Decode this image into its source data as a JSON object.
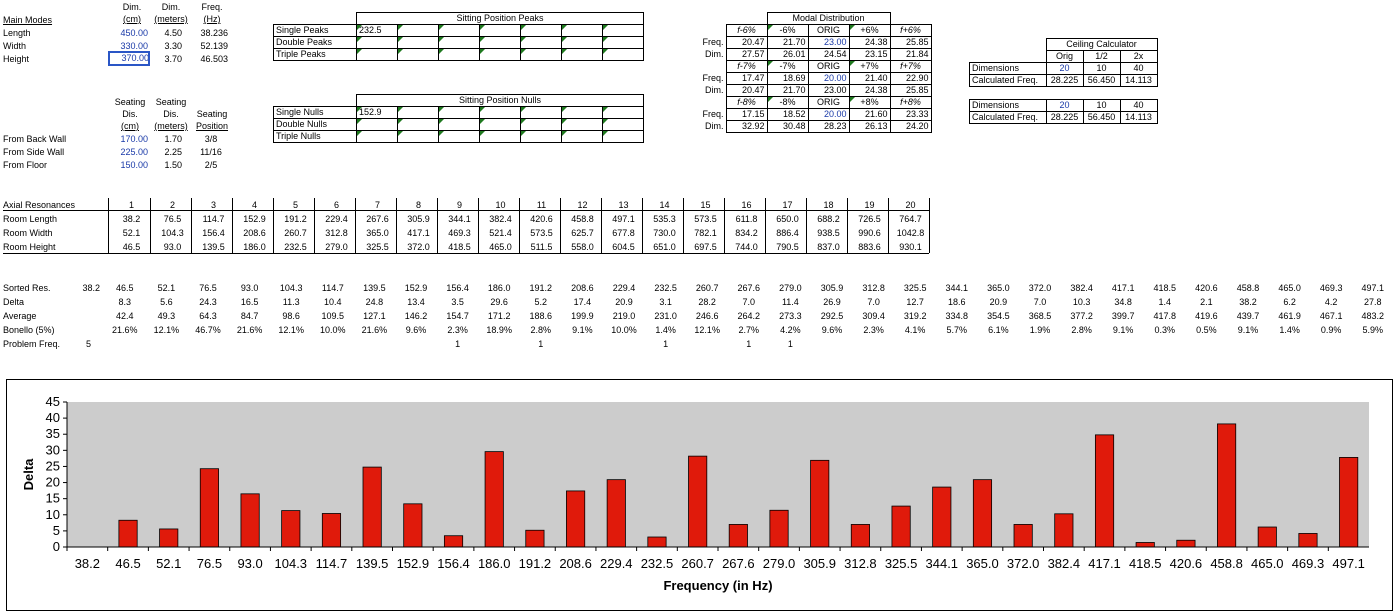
{
  "main_modes": {
    "label": "Main Modes",
    "headers": [
      [
        "Dim.",
        "(cm)"
      ],
      [
        "Dim.",
        "(meters)"
      ],
      [
        "Freq.",
        "(Hz)"
      ]
    ],
    "rows": [
      {
        "name": "Length",
        "cm": "450.00",
        "m": "4.50",
        "hz": "38.236"
      },
      {
        "name": "Width",
        "cm": "330.00",
        "m": "3.30",
        "hz": "52.139"
      },
      {
        "name": "Height",
        "cm": "370.00",
        "m": "3.70",
        "hz": "46.503"
      }
    ]
  },
  "seating": {
    "headers": [
      [
        "Seating",
        "Dis.",
        "(cm)"
      ],
      [
        "Seating",
        "Dis.",
        "(meters)"
      ],
      [
        "Seating",
        "Position"
      ]
    ],
    "rows": [
      {
        "name": "From Back Wall",
        "cm": "170.00",
        "m": "1.70",
        "pos": "3/8"
      },
      {
        "name": "From Side Wall",
        "cm": "225.00",
        "m": "2.25",
        "pos": "11/16"
      },
      {
        "name": "From Floor",
        "cm": "150.00",
        "m": "1.50",
        "pos": "2/5"
      }
    ]
  },
  "peaks": {
    "title": "Sitting Position Peaks",
    "rows": [
      {
        "label": "Single Peaks",
        "first": "232.5"
      },
      {
        "label": "Double Peaks",
        "first": ""
      },
      {
        "label": "Triple Peaks",
        "first": ""
      }
    ]
  },
  "nulls": {
    "title": "Sitting Position Nulls",
    "rows": [
      {
        "label": "Single Nulls",
        "first": "152.9"
      },
      {
        "label": "Double Nulls",
        "first": ""
      },
      {
        "label": "Triple Nulls",
        "first": ""
      }
    ]
  },
  "modal": {
    "title": "Modal Distribution",
    "blocks": [
      {
        "head": [
          "f-6%",
          "-6%",
          "ORIG",
          "+6%",
          "f+6%"
        ],
        "freq": [
          "20.47",
          "21.70",
          "23.00",
          "24.38",
          "25.85"
        ],
        "dim": [
          "27.57",
          "26.01",
          "24.54",
          "23.15",
          "21.84"
        ]
      },
      {
        "head": [
          "f-7%",
          "-7%",
          "ORIG",
          "+7%",
          "f+7%"
        ],
        "freq": [
          "17.47",
          "18.69",
          "20.00",
          "21.40",
          "22.90"
        ],
        "dim": [
          "20.47",
          "21.70",
          "23.00",
          "24.38",
          "25.85"
        ]
      },
      {
        "head": [
          "f-8%",
          "-8%",
          "ORIG",
          "+8%",
          "f+8%"
        ],
        "freq": [
          "17.15",
          "18.52",
          "20.00",
          "21.60",
          "23.33"
        ],
        "dim": [
          "32.92",
          "30.48",
          "28.23",
          "26.13",
          "24.20"
        ]
      }
    ],
    "freq_label": "Freq.",
    "dim_label": "Dim."
  },
  "ceiling": {
    "title": "Ceiling Calculator",
    "cols": [
      "Orig",
      "1/2",
      "2x"
    ],
    "blocks": [
      {
        "dims": [
          "20",
          "10",
          "40"
        ],
        "freq": [
          "28.225",
          "56.450",
          "14.113"
        ]
      },
      {
        "dims": [
          "20",
          "10",
          "40"
        ],
        "freq": [
          "28.225",
          "56.450",
          "14.113"
        ]
      }
    ],
    "dim_label": "Dimensions",
    "freq_label": "Calculated Freq."
  },
  "axial": {
    "label": "Axial Resonances",
    "cols": [
      "1",
      "2",
      "3",
      "4",
      "5",
      "6",
      "7",
      "8",
      "9",
      "10",
      "11",
      "12",
      "13",
      "14",
      "15",
      "16",
      "17",
      "18",
      "19",
      "20"
    ],
    "rows": [
      {
        "name": "Room Length",
        "v": [
          "38.2",
          "76.5",
          "114.7",
          "152.9",
          "191.2",
          "229.4",
          "267.6",
          "305.9",
          "344.1",
          "382.4",
          "420.6",
          "458.8",
          "497.1",
          "535.3",
          "573.5",
          "611.8",
          "650.0",
          "688.2",
          "726.5",
          "764.7"
        ]
      },
      {
        "name": "Room Width",
        "v": [
          "52.1",
          "104.3",
          "156.4",
          "208.6",
          "260.7",
          "312.8",
          "365.0",
          "417.1",
          "469.3",
          "521.4",
          "573.5",
          "625.7",
          "677.8",
          "730.0",
          "782.1",
          "834.2",
          "886.4",
          "938.5",
          "990.6",
          "1042.8"
        ]
      },
      {
        "name": "Room Height",
        "v": [
          "46.5",
          "93.0",
          "139.5",
          "186.0",
          "232.5",
          "279.0",
          "325.5",
          "372.0",
          "418.5",
          "465.0",
          "511.5",
          "558.0",
          "604.5",
          "651.0",
          "697.5",
          "744.0",
          "790.5",
          "837.0",
          "883.6",
          "930.1"
        ]
      }
    ]
  },
  "sorted": {
    "labels": [
      "Sorted Res.",
      "Delta",
      "Average",
      "Bonello (5%)",
      "Problem Freq."
    ],
    "first": "38.2",
    "problem_count": "5",
    "res": [
      "46.5",
      "52.1",
      "76.5",
      "93.0",
      "104.3",
      "114.7",
      "139.5",
      "152.9",
      "156.4",
      "186.0",
      "191.2",
      "208.6",
      "229.4",
      "232.5",
      "260.7",
      "267.6",
      "279.0",
      "305.9",
      "312.8",
      "325.5",
      "344.1",
      "365.0",
      "372.0",
      "382.4",
      "417.1",
      "418.5",
      "420.6",
      "458.8",
      "465.0",
      "469.3",
      "497.1"
    ],
    "delta": [
      "8.3",
      "5.6",
      "24.3",
      "16.5",
      "11.3",
      "10.4",
      "24.8",
      "13.4",
      "3.5",
      "29.6",
      "5.2",
      "17.4",
      "20.9",
      "3.1",
      "28.2",
      "7.0",
      "11.4",
      "26.9",
      "7.0",
      "12.7",
      "18.6",
      "20.9",
      "7.0",
      "10.3",
      "34.8",
      "1.4",
      "2.1",
      "38.2",
      "6.2",
      "4.2",
      "27.8"
    ],
    "avg": [
      "42.4",
      "49.3",
      "64.3",
      "84.7",
      "98.6",
      "109.5",
      "127.1",
      "146.2",
      "154.7",
      "171.2",
      "188.6",
      "199.9",
      "219.0",
      "231.0",
      "246.6",
      "264.2",
      "273.3",
      "292.5",
      "309.4",
      "319.2",
      "334.8",
      "354.5",
      "368.5",
      "377.2",
      "399.7",
      "417.8",
      "419.6",
      "439.7",
      "461.9",
      "467.1",
      "483.2"
    ],
    "bonello": [
      "21.6%",
      "12.1%",
      "46.7%",
      "21.6%",
      "12.1%",
      "10.0%",
      "21.6%",
      "9.6%",
      "2.3%",
      "18.9%",
      "2.8%",
      "9.1%",
      "10.0%",
      "1.4%",
      "12.1%",
      "2.7%",
      "4.2%",
      "9.6%",
      "2.3%",
      "4.1%",
      "5.7%",
      "6.1%",
      "1.9%",
      "2.8%",
      "9.1%",
      "0.3%",
      "0.5%",
      "9.1%",
      "1.4%",
      "0.9%",
      "5.9%"
    ],
    "problem": [
      "",
      "",
      "",
      "",
      "",
      "",
      "",
      "",
      "1",
      "",
      "1",
      "",
      "",
      "1",
      "",
      "1",
      "1",
      "",
      "",
      "",
      "",
      "",
      "",
      "",
      "",
      "",
      "",
      "",
      "",
      "",
      ""
    ]
  },
  "chart_data": {
    "type": "bar",
    "xlabel": "Frequency (in Hz)",
    "ylabel": "Delta",
    "ylim": [
      0,
      45
    ],
    "yticks": [
      "0",
      "5",
      "10",
      "15",
      "20",
      "25",
      "30",
      "35",
      "40",
      "45"
    ],
    "categories": [
      "38.2",
      "46.5",
      "52.1",
      "76.5",
      "93.0",
      "104.3",
      "114.7",
      "139.5",
      "152.9",
      "156.4",
      "186.0",
      "191.2",
      "208.6",
      "229.4",
      "232.5",
      "260.7",
      "267.6",
      "279.0",
      "305.9",
      "312.8",
      "325.5",
      "344.1",
      "365.0",
      "372.0",
      "382.4",
      "417.1",
      "418.5",
      "420.6",
      "458.8",
      "465.0",
      "469.3",
      "497.1"
    ],
    "values": [
      0,
      8.3,
      5.6,
      24.3,
      16.5,
      11.3,
      10.4,
      24.8,
      13.4,
      3.5,
      29.6,
      5.2,
      17.4,
      20.9,
      3.1,
      28.2,
      7.0,
      11.4,
      26.9,
      7.0,
      12.7,
      18.6,
      20.9,
      7.0,
      10.3,
      34.8,
      1.4,
      2.1,
      38.2,
      6.2,
      4.2,
      27.8
    ],
    "colors": {
      "bar": "#e01a0b",
      "plot_bg": "#cccccc"
    },
    "grid": false
  }
}
